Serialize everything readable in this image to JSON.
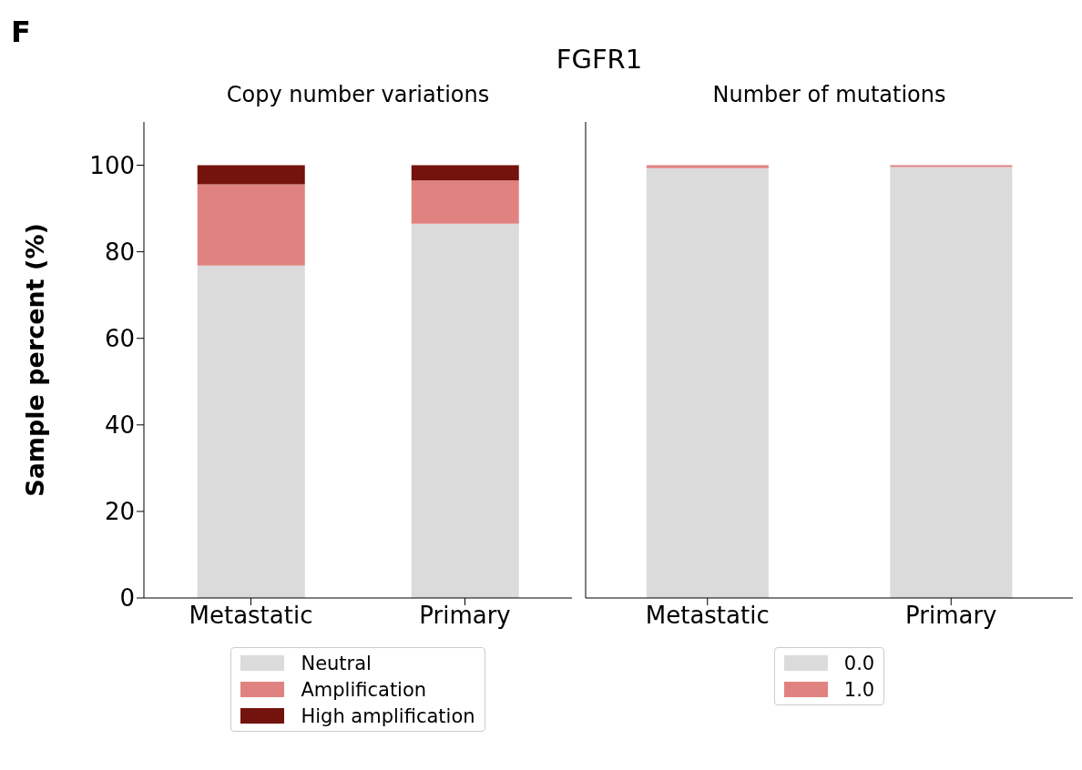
{
  "chart_data": [
    {
      "type": "bar",
      "title": "Copy number variations",
      "annotations": [
        "F",
        "FGFR1"
      ],
      "ylabel": "Sample percent (%)",
      "categories": [
        "Metastatic",
        "Primary"
      ],
      "stacked": true,
      "ylim": [
        0,
        110
      ],
      "yticks": [
        0,
        20,
        40,
        60,
        80,
        100
      ],
      "legend": "bottom",
      "grid": false,
      "series": [
        {
          "name": "Neutral",
          "color": "#dbdbdb",
          "values": [
            76.8,
            86.5
          ]
        },
        {
          "name": "Amplification",
          "color": "#e08380",
          "values": [
            18.8,
            10.0
          ]
        },
        {
          "name": "High amplification",
          "color": "#74120d",
          "values": [
            4.4,
            3.5
          ]
        }
      ]
    },
    {
      "type": "bar",
      "title": "Number of mutations",
      "categories": [
        "Metastatic",
        "Primary"
      ],
      "stacked": true,
      "ylim": [
        0,
        110
      ],
      "yticks": [
        0,
        20,
        40,
        60,
        80,
        100
      ],
      "tick_labels": "x",
      "legend": "bottom",
      "grid": false,
      "series": [
        {
          "name": "0.0",
          "color": "#dbdbdb",
          "values": [
            99.3,
            99.6
          ]
        },
        {
          "name": "1.0",
          "color": "#e08380",
          "values": [
            0.7,
            0.4
          ]
        }
      ]
    }
  ]
}
